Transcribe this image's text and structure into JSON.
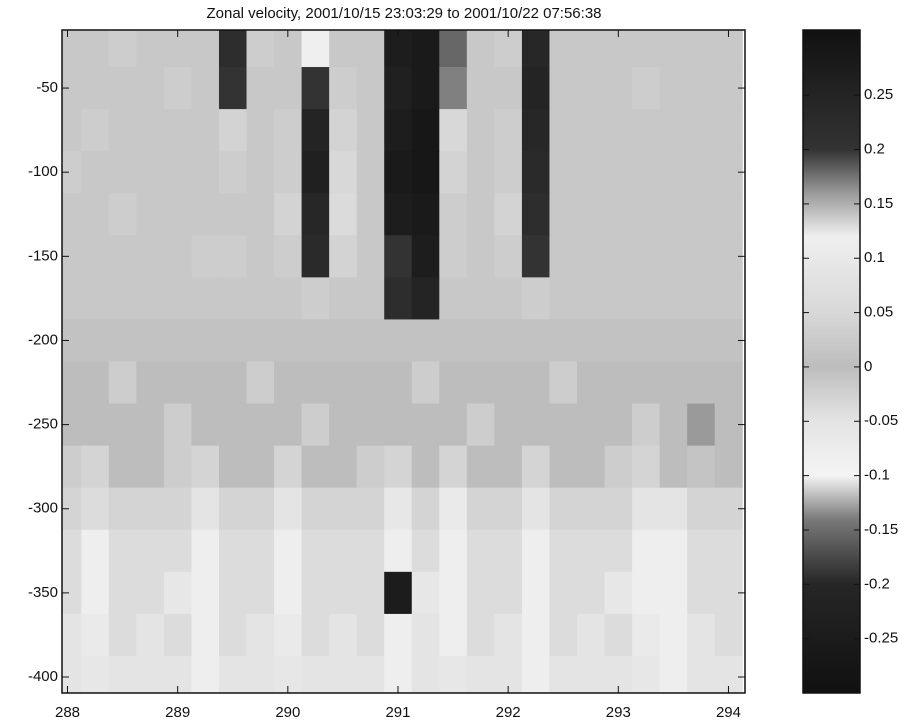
{
  "chart_data": {
    "type": "heatmap",
    "title": "Zonal velocity, 2001/10/15 23:03:29 to 2001/10/22 07:56:38",
    "x": [
      288,
      288.25,
      288.5,
      288.75,
      289,
      289.25,
      289.5,
      289.75,
      290,
      290.25,
      290.5,
      290.75,
      291,
      291.25,
      291.5,
      291.75,
      292,
      292.25,
      292.5,
      292.75,
      293,
      293.25,
      293.5,
      293.75,
      294
    ],
    "y": [
      -25,
      -50,
      -75,
      -100,
      -125,
      -150,
      -175,
      -200,
      -225,
      -250,
      -275,
      -300,
      -325,
      -350,
      -375,
      -400
    ],
    "z": [
      [
        0.02,
        0.02,
        0.03,
        0.02,
        0.02,
        0.02,
        0.22,
        0.03,
        0.02,
        0.12,
        0.02,
        0.02,
        0.27,
        0.28,
        0.18,
        0.02,
        0.03,
        0.24,
        0.02,
        0.02,
        0.02,
        0.02,
        0.02,
        0.02,
        0.02
      ],
      [
        0.02,
        0.02,
        0.02,
        0.02,
        0.03,
        0.02,
        0.2,
        0.02,
        0.02,
        0.2,
        0.03,
        0.02,
        0.26,
        0.28,
        0.17,
        0.02,
        0.02,
        0.25,
        0.02,
        0.02,
        0.02,
        0.03,
        0.02,
        0.02,
        0.02
      ],
      [
        0.02,
        0.03,
        0.02,
        0.02,
        0.02,
        0.02,
        0.04,
        0.02,
        0.03,
        0.25,
        0.04,
        0.02,
        0.27,
        0.29,
        0.05,
        0.02,
        0.03,
        0.24,
        0.02,
        0.02,
        0.02,
        0.02,
        0.02,
        0.02,
        0.02
      ],
      [
        0.03,
        0.02,
        0.02,
        0.02,
        0.02,
        0.02,
        0.03,
        0.02,
        0.03,
        0.26,
        0.05,
        0.02,
        0.28,
        0.29,
        0.04,
        0.02,
        0.03,
        0.23,
        0.02,
        0.02,
        0.02,
        0.02,
        0.02,
        0.02,
        0.02
      ],
      [
        0.02,
        0.02,
        0.03,
        0.02,
        0.02,
        0.02,
        0.02,
        0.02,
        0.04,
        0.24,
        0.06,
        0.02,
        0.27,
        0.28,
        0.03,
        0.02,
        0.04,
        0.22,
        0.02,
        0.02,
        0.02,
        0.02,
        0.02,
        0.02,
        0.02
      ],
      [
        0.02,
        0.02,
        0.02,
        0.02,
        0.02,
        0.03,
        0.03,
        0.02,
        0.03,
        0.23,
        0.04,
        0.02,
        0.2,
        0.27,
        0.03,
        0.02,
        0.03,
        0.2,
        0.02,
        0.02,
        0.02,
        0.02,
        0.02,
        0.02,
        0.02
      ],
      [
        0.02,
        0.02,
        0.02,
        0.02,
        0.02,
        0.02,
        0.02,
        0.02,
        0.02,
        0.03,
        0.02,
        0.02,
        0.22,
        0.25,
        0.02,
        0.02,
        0.02,
        0.03,
        0.02,
        0.02,
        0.02,
        0.02,
        0.02,
        0.02,
        0.02
      ],
      [
        0.01,
        0.01,
        0.01,
        0.01,
        0.01,
        0.01,
        0.01,
        0.01,
        0.01,
        0.01,
        0.01,
        0.01,
        0.01,
        0.01,
        0.01,
        0.01,
        0.01,
        0.01,
        0.01,
        0.01,
        0.01,
        0.01,
        0.01,
        0.01,
        0.01
      ],
      [
        0,
        0,
        -0.02,
        0,
        0,
        0,
        0,
        -0.02,
        0,
        0,
        0,
        0,
        0,
        -0.02,
        0,
        0,
        0,
        0,
        -0.02,
        0,
        0,
        0,
        0,
        0,
        0
      ],
      [
        0,
        0,
        0,
        0,
        -0.02,
        0,
        0,
        0,
        0,
        -0.02,
        0,
        0,
        0,
        0,
        0,
        -0.02,
        0,
        0,
        0,
        0,
        0,
        -0.02,
        0,
        0.16,
        0
      ],
      [
        -0.02,
        -0.03,
        0,
        0,
        -0.02,
        -0.03,
        0,
        0,
        -0.03,
        0,
        0,
        -0.02,
        -0.03,
        0,
        -0.03,
        0,
        0,
        -0.03,
        0,
        0,
        -0.02,
        -0.03,
        0,
        0.14,
        0
      ],
      [
        -0.03,
        -0.04,
        -0.03,
        -0.03,
        -0.03,
        -0.05,
        -0.03,
        -0.03,
        -0.05,
        -0.03,
        -0.03,
        -0.03,
        -0.06,
        -0.03,
        -0.07,
        -0.03,
        -0.03,
        -0.05,
        -0.03,
        -0.03,
        -0.03,
        -0.05,
        -0.05,
        -0.03,
        -0.03
      ],
      [
        -0.04,
        -0.08,
        -0.04,
        -0.04,
        -0.04,
        -0.08,
        -0.04,
        -0.04,
        -0.08,
        -0.04,
        -0.04,
        -0.04,
        -0.08,
        -0.04,
        -0.08,
        -0.04,
        -0.04,
        -0.08,
        -0.04,
        -0.04,
        -0.04,
        -0.08,
        -0.08,
        -0.04,
        -0.04
      ],
      [
        -0.04,
        -0.08,
        -0.04,
        -0.04,
        -0.06,
        -0.08,
        -0.04,
        -0.04,
        -0.08,
        -0.04,
        -0.04,
        -0.04,
        -0.25,
        -0.06,
        -0.08,
        -0.04,
        -0.04,
        -0.08,
        -0.04,
        -0.04,
        -0.06,
        -0.08,
        -0.08,
        -0.04,
        -0.04
      ],
      [
        -0.05,
        -0.07,
        -0.04,
        -0.05,
        -0.04,
        -0.08,
        -0.04,
        -0.05,
        -0.07,
        -0.04,
        -0.05,
        -0.04,
        -0.08,
        -0.05,
        -0.08,
        -0.04,
        -0.05,
        -0.08,
        -0.04,
        -0.05,
        -0.04,
        -0.07,
        -0.08,
        -0.05,
        -0.04
      ],
      [
        -0.05,
        -0.06,
        -0.05,
        -0.05,
        -0.05,
        -0.08,
        -0.05,
        -0.05,
        -0.06,
        -0.05,
        -0.05,
        -0.05,
        -0.08,
        -0.05,
        -0.06,
        -0.05,
        -0.05,
        -0.08,
        -0.05,
        -0.05,
        -0.05,
        -0.06,
        -0.08,
        -0.05,
        -0.05
      ]
    ],
    "xlim": [
      287.95,
      294.15
    ],
    "ylim": [
      -409.5,
      -15.5
    ],
    "xticks": [
      288,
      289,
      290,
      291,
      292,
      293,
      294
    ],
    "yticks": [
      -50,
      -100,
      -150,
      -200,
      -250,
      -300,
      -350,
      -400
    ],
    "clim": [
      -0.3,
      0.31
    ],
    "cticks": [
      0.25,
      0.2,
      0.15,
      0.1,
      0.05,
      0,
      -0.05,
      -0.1,
      -0.15,
      -0.2,
      -0.25
    ],
    "colormap": [
      {
        "value": -0.3,
        "color": "#111111"
      },
      {
        "value": -0.2,
        "color": "#262626"
      },
      {
        "value": -0.14,
        "color": "#7a7a7a"
      },
      {
        "value": -0.1,
        "color": "#f4f4f4"
      },
      {
        "value": -0.05,
        "color": "#e4e4e4"
      },
      {
        "value": 0,
        "color": "#bdbdbd"
      },
      {
        "value": 0.05,
        "color": "#d8d8d8"
      },
      {
        "value": 0.12,
        "color": "#efefef"
      },
      {
        "value": 0.16,
        "color": "#9a9a9a"
      },
      {
        "value": 0.2,
        "color": "#333333"
      },
      {
        "value": 0.31,
        "color": "#111111"
      }
    ]
  }
}
